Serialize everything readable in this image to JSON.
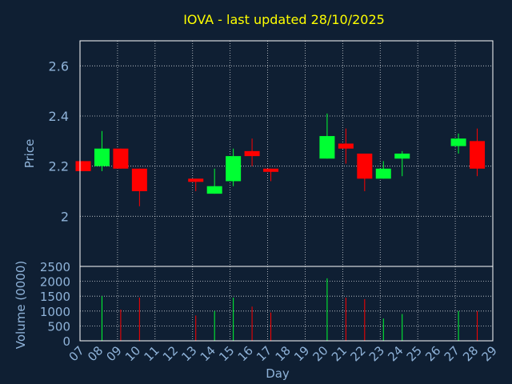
{
  "chart_data": {
    "type": "candlestick",
    "title": "IOVA - last updated 28/10/2025",
    "xlabel": "Day",
    "ylabel_price": "Price",
    "ylabel_volume": "Volume (0000)",
    "x_ticks": [
      "07",
      "08",
      "09",
      "10",
      "11",
      "12",
      "13",
      "14",
      "15",
      "16",
      "17",
      "18",
      "19",
      "20",
      "21",
      "22",
      "23",
      "24",
      "25",
      "26",
      "27",
      "28",
      "29"
    ],
    "price_ticks": [
      "2",
      "2.2",
      "2.4",
      "2.6"
    ],
    "volume_ticks": [
      "0",
      "500",
      "1000",
      "1500",
      "2000",
      "2500"
    ],
    "price_range": [
      1.8,
      2.7
    ],
    "volume_range": [
      0,
      2500
    ],
    "colors": {
      "background": "#0f1f33",
      "up": "#00ff33",
      "down": "#ff0000",
      "title": "#ffff00",
      "axis_text": "#8fb3d9",
      "frame": "#ffffff"
    },
    "candles": [
      {
        "day": 7,
        "open": 2.22,
        "high": 2.22,
        "low": 2.18,
        "close": 2.18,
        "volume": 0
      },
      {
        "day": 8,
        "open": 2.2,
        "high": 2.34,
        "low": 2.18,
        "close": 2.27,
        "volume": 1500
      },
      {
        "day": 9,
        "open": 2.27,
        "high": 2.27,
        "low": 2.19,
        "close": 2.19,
        "volume": 1050
      },
      {
        "day": 10,
        "open": 2.19,
        "high": 2.19,
        "low": 2.04,
        "close": 2.1,
        "volume": 1450
      },
      {
        "day": 13,
        "open": 2.15,
        "high": 2.15,
        "low": 2.1,
        "close": 2.14,
        "volume": 850
      },
      {
        "day": 14,
        "open": 2.09,
        "high": 2.19,
        "low": 2.09,
        "close": 2.12,
        "volume": 1000
      },
      {
        "day": 15,
        "open": 2.14,
        "high": 2.27,
        "low": 2.12,
        "close": 2.24,
        "volume": 1450
      },
      {
        "day": 16,
        "open": 2.26,
        "high": 2.31,
        "low": 2.2,
        "close": 2.24,
        "volume": 1150
      },
      {
        "day": 17,
        "open": 2.19,
        "high": 2.19,
        "low": 2.14,
        "close": 2.18,
        "volume": 950
      },
      {
        "day": 20,
        "open": 2.23,
        "high": 2.41,
        "low": 2.23,
        "close": 2.32,
        "volume": 2100
      },
      {
        "day": 21,
        "open": 2.29,
        "high": 2.35,
        "low": 2.21,
        "close": 2.27,
        "volume": 1450
      },
      {
        "day": 22,
        "open": 2.25,
        "high": 2.25,
        "low": 2.1,
        "close": 2.15,
        "volume": 1400
      },
      {
        "day": 23,
        "open": 2.15,
        "high": 2.22,
        "low": 2.15,
        "close": 2.19,
        "volume": 750
      },
      {
        "day": 24,
        "open": 2.23,
        "high": 2.26,
        "low": 2.16,
        "close": 2.25,
        "volume": 900
      },
      {
        "day": 27,
        "open": 2.28,
        "high": 2.33,
        "low": 2.25,
        "close": 2.31,
        "volume": 1000
      },
      {
        "day": 28,
        "open": 2.3,
        "high": 2.35,
        "low": 2.16,
        "close": 2.19,
        "volume": 1000
      }
    ],
    "grid": true
  }
}
